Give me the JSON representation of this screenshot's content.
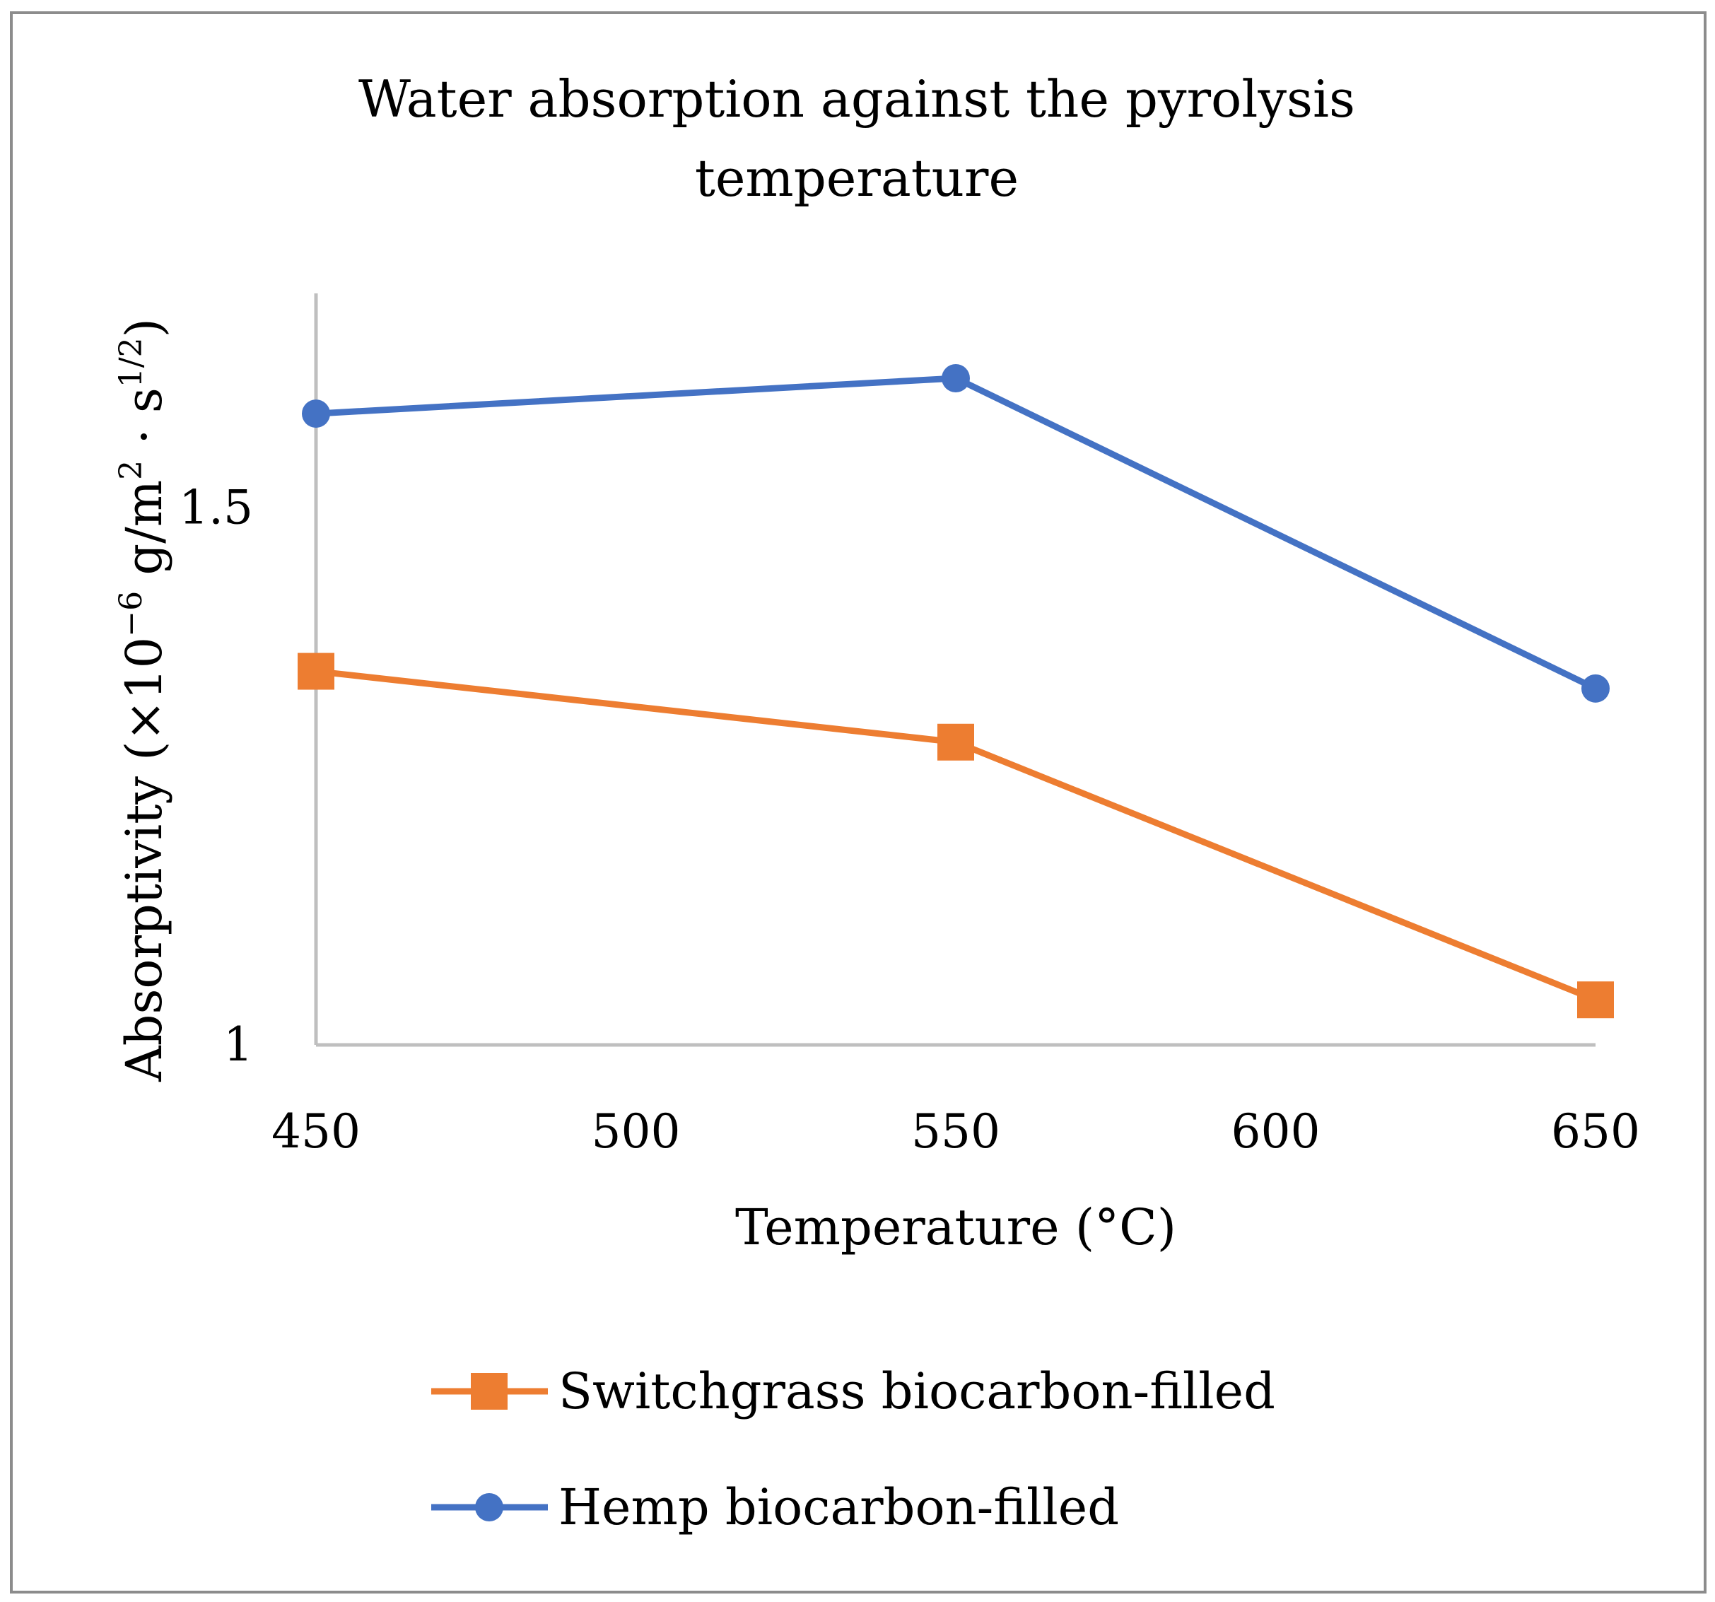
{
  "chart_data": {
    "type": "line",
    "title_lines": [
      "Water absorption against the pyrolysis",
      "temperature"
    ],
    "xlabel": "Temperature (°C)",
    "ylabel_parts": {
      "prefix": "Absorptivity (×10",
      "exp1": "−6",
      "mid1": " g/m",
      "exp2": "2",
      "mid2": " · s",
      "exp3": "1/2",
      "suffix": ")"
    },
    "x_ticks": [
      "450",
      "500",
      "550",
      "600",
      "650"
    ],
    "y_ticks": [
      "1",
      "1.5"
    ],
    "xlim": [
      450,
      650
    ],
    "ylim": [
      1,
      1.7
    ],
    "grid": false,
    "legend_position": "bottom",
    "series": [
      {
        "name": "Switchgrass biocarbon-filled",
        "color": "#ED7D31",
        "marker": "square",
        "x": [
          450,
          550,
          650
        ],
        "y": [
          1.348,
          1.282,
          1.042
        ]
      },
      {
        "name": "Hemp biocarbon-filled",
        "color": "#4472C4",
        "marker": "circle",
        "x": [
          450,
          550,
          650
        ],
        "y": [
          1.588,
          1.621,
          1.332
        ]
      }
    ]
  }
}
